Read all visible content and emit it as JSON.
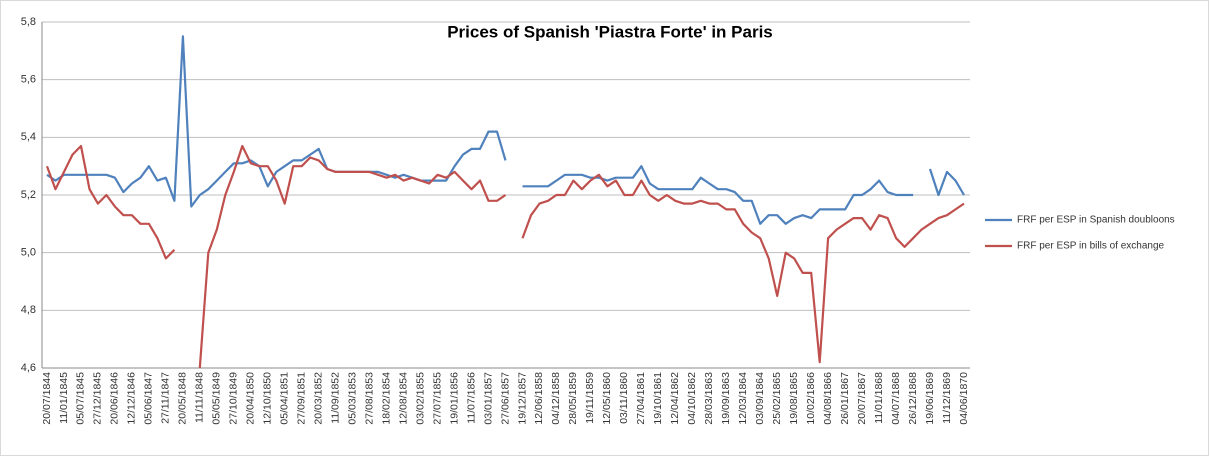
{
  "chart_data": {
    "type": "line",
    "title": "Prices of Spanish 'Piastra Forte' in Paris",
    "categories": [
      "20/07/1844",
      null,
      "11/01/1845",
      null,
      "05/07/1845",
      null,
      "27/12/1845",
      null,
      "20/06/1846",
      null,
      "12/12/1846",
      null,
      "05/06/1847",
      null,
      "27/11/1847",
      null,
      "20/05/1848",
      null,
      "11/11/1848",
      null,
      "05/05/1849",
      null,
      "27/10/1849",
      null,
      "20/04/1850",
      null,
      "12/10/1850",
      null,
      "05/04/1851",
      null,
      "27/09/1851",
      null,
      "20/03/1852",
      null,
      "11/09/1852",
      null,
      "05/03/1853",
      null,
      "27/08/1853",
      null,
      "18/02/1854",
      null,
      "12/08/1854",
      null,
      "03/02/1855",
      null,
      "27/07/1855",
      null,
      "19/01/1856",
      null,
      "11/07/1856",
      null,
      "03/01/1857",
      null,
      "27/06/1857",
      null,
      "19/12/1857",
      null,
      "12/06/1858",
      null,
      "04/12/1858",
      null,
      "28/05/1859",
      null,
      "19/11/1859",
      null,
      "12/05/1860",
      null,
      "03/11/1860",
      null,
      "27/04/1861",
      null,
      "19/10/1861",
      null,
      "12/04/1862",
      null,
      "04/10/1862",
      null,
      "28/03/1863",
      null,
      "19/09/1863",
      null,
      "12/03/1864",
      null,
      "03/09/1864",
      null,
      "25/02/1865",
      null,
      "19/08/1865",
      null,
      "10/02/1866",
      null,
      "04/08/1866",
      null,
      "26/01/1867",
      null,
      "20/07/1867",
      null,
      "11/01/1868",
      null,
      "04/07/1868",
      null,
      "26/12/1868",
      null,
      "19/06/1869",
      null,
      "11/12/1869",
      null,
      "04/06/1870"
    ],
    "series": [
      {
        "name": "FRF per ESP in Spanish doubloons",
        "color": "#4f81bd",
        "values": [
          5.27,
          5.25,
          5.27,
          5.27,
          5.27,
          5.27,
          5.27,
          5.27,
          5.26,
          5.21,
          5.24,
          5.26,
          5.3,
          5.25,
          5.26,
          5.18,
          5.75,
          5.16,
          5.2,
          5.22,
          5.25,
          5.28,
          5.31,
          5.31,
          5.32,
          5.3,
          5.23,
          5.28,
          5.3,
          5.32,
          5.32,
          5.34,
          5.36,
          5.29,
          5.28,
          5.28,
          5.28,
          5.28,
          5.28,
          5.28,
          5.27,
          5.26,
          5.27,
          5.26,
          5.25,
          5.25,
          5.25,
          5.25,
          5.3,
          5.34,
          5.36,
          5.36,
          5.42,
          5.42,
          5.32,
          null,
          5.23,
          5.23,
          5.23,
          5.23,
          5.25,
          5.27,
          5.27,
          5.27,
          5.26,
          5.26,
          5.25,
          5.26,
          5.26,
          5.26,
          5.3,
          5.24,
          5.22,
          5.22,
          5.22,
          5.22,
          5.22,
          5.26,
          5.24,
          5.22,
          5.22,
          5.21,
          5.18,
          5.18,
          5.1,
          5.13,
          5.13,
          5.1,
          5.12,
          5.13,
          5.12,
          5.15,
          5.15,
          5.15,
          5.15,
          5.2,
          5.2,
          5.22,
          5.25,
          5.21,
          5.2,
          5.2,
          5.2,
          null,
          5.29,
          5.2,
          5.28,
          5.25,
          5.2
        ]
      },
      {
        "name": "FRF per ESP in bills of exchange",
        "color": "#c0504d",
        "values": [
          5.3,
          5.22,
          5.28,
          5.34,
          5.37,
          5.22,
          5.17,
          5.2,
          5.16,
          5.13,
          5.13,
          5.1,
          5.1,
          5.05,
          4.98,
          5.01,
          null,
          null,
          4.6,
          5.0,
          5.08,
          5.2,
          5.28,
          5.37,
          5.31,
          5.3,
          5.3,
          5.25,
          5.17,
          5.3,
          5.3,
          5.33,
          5.32,
          5.29,
          5.28,
          5.28,
          5.28,
          5.28,
          5.28,
          5.27,
          5.26,
          5.27,
          5.25,
          5.26,
          5.25,
          5.24,
          5.27,
          5.26,
          5.28,
          5.25,
          5.22,
          5.25,
          5.18,
          5.18,
          5.2,
          null,
          5.05,
          5.13,
          5.17,
          5.18,
          5.2,
          5.2,
          5.25,
          5.22,
          5.25,
          5.27,
          5.23,
          5.25,
          5.2,
          5.2,
          5.25,
          5.2,
          5.18,
          5.2,
          5.18,
          5.17,
          5.17,
          5.18,
          5.17,
          5.17,
          5.15,
          5.15,
          5.1,
          5.07,
          5.05,
          4.98,
          4.85,
          5.0,
          4.98,
          4.93,
          4.93,
          4.62,
          5.05,
          5.08,
          5.1,
          5.12,
          5.12,
          5.08,
          5.13,
          5.12,
          5.05,
          5.02,
          5.05,
          5.08,
          5.1,
          5.12,
          5.13,
          5.15,
          5.17
        ]
      }
    ],
    "ylim": [
      4.6,
      5.8
    ],
    "yticks": [
      {
        "value": 4.6,
        "label": "4,6"
      },
      {
        "value": 4.8,
        "label": "4,8"
      },
      {
        "value": 5.0,
        "label": "5,0"
      },
      {
        "value": 5.2,
        "label": "5,2"
      },
      {
        "value": 5.4,
        "label": "5,4"
      },
      {
        "value": 5.6,
        "label": "5,6"
      },
      {
        "value": 5.8,
        "label": "5,8"
      }
    ],
    "grid": true,
    "legend": "right"
  }
}
